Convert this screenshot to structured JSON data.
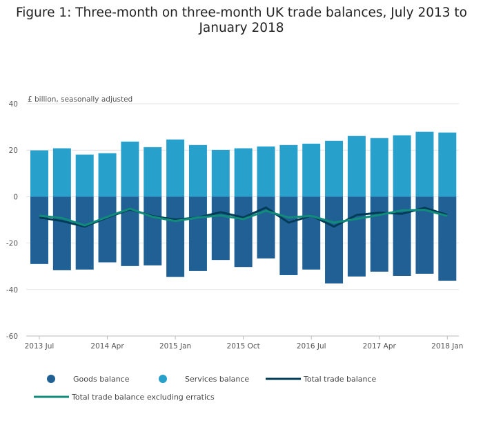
{
  "chart_data": {
    "type": "bar",
    "title": "Figure 1: Three-month on three-month UK trade balances, July 2013 to January 2018",
    "ylabel": "£ billion, seasonally adjusted",
    "ylim": [
      -60,
      40
    ],
    "yticks": [
      "40",
      "20",
      "0",
      "-20",
      "-40",
      "-60"
    ],
    "ytick_values": [
      40,
      20,
      0,
      -20,
      -40,
      -60
    ],
    "categories": [
      "2013 Jul",
      "2013 Oct",
      "2014 Jan",
      "2014 Apr",
      "2014 Jul",
      "2014 Oct",
      "2015 Jan",
      "2015 Apr",
      "2015 Jul",
      "2015 Oct",
      "2016 Jan",
      "2016 Apr",
      "2016 Jul",
      "2016 Oct",
      "2017 Jan",
      "2017 Apr",
      "2017 Jul",
      "2017 Oct",
      "2018 Jan"
    ],
    "xtick_labels": [
      "2013 Jul",
      "2014 Apr",
      "2015 Jan",
      "2015 Oct",
      "2016 Jul",
      "2017 Apr",
      "2018 Jan"
    ],
    "xtick_indices": [
      0,
      3,
      6,
      9,
      12,
      15,
      18
    ],
    "series": [
      {
        "name": "Goods balance",
        "type": "bar",
        "color": "#206095",
        "values": [
          -29.0,
          -31.7,
          -31.4,
          -28.3,
          -29.9,
          -29.6,
          -34.6,
          -32.0,
          -27.3,
          -30.3,
          -26.6,
          -33.8,
          -31.4,
          -37.4,
          -34.4,
          -32.3,
          -34.1,
          -33.2,
          -36.2
        ]
      },
      {
        "name": "Services balance",
        "type": "bar",
        "color": "#27a0cc",
        "values": [
          19.9,
          20.8,
          18.1,
          18.7,
          23.7,
          21.3,
          24.6,
          22.2,
          20.1,
          20.8,
          21.6,
          22.2,
          22.8,
          24.0,
          26.1,
          25.2,
          26.4,
          27.9,
          27.6
        ]
      },
      {
        "name": "Total trade balance",
        "type": "line",
        "color": "#003c57",
        "values": [
          -9.0,
          -10.5,
          -12.9,
          -9.0,
          -5.5,
          -8.4,
          -9.9,
          -9.0,
          -6.7,
          -9.0,
          -4.7,
          -11.2,
          -8.2,
          -12.9,
          -7.9,
          -6.9,
          -7.4,
          -4.8,
          -7.9
        ]
      },
      {
        "name": "Total trade balance excluding erratics",
        "type": "line",
        "color": "#118c7b",
        "values": [
          -8.2,
          -9.2,
          -12.4,
          -8.7,
          -5.2,
          -8.7,
          -10.5,
          -9.0,
          -8.1,
          -9.7,
          -6.1,
          -9.0,
          -8.3,
          -11.2,
          -9.6,
          -7.9,
          -5.9,
          -5.7,
          -8.3
        ]
      }
    ],
    "grid": true,
    "legend": "bottom"
  }
}
